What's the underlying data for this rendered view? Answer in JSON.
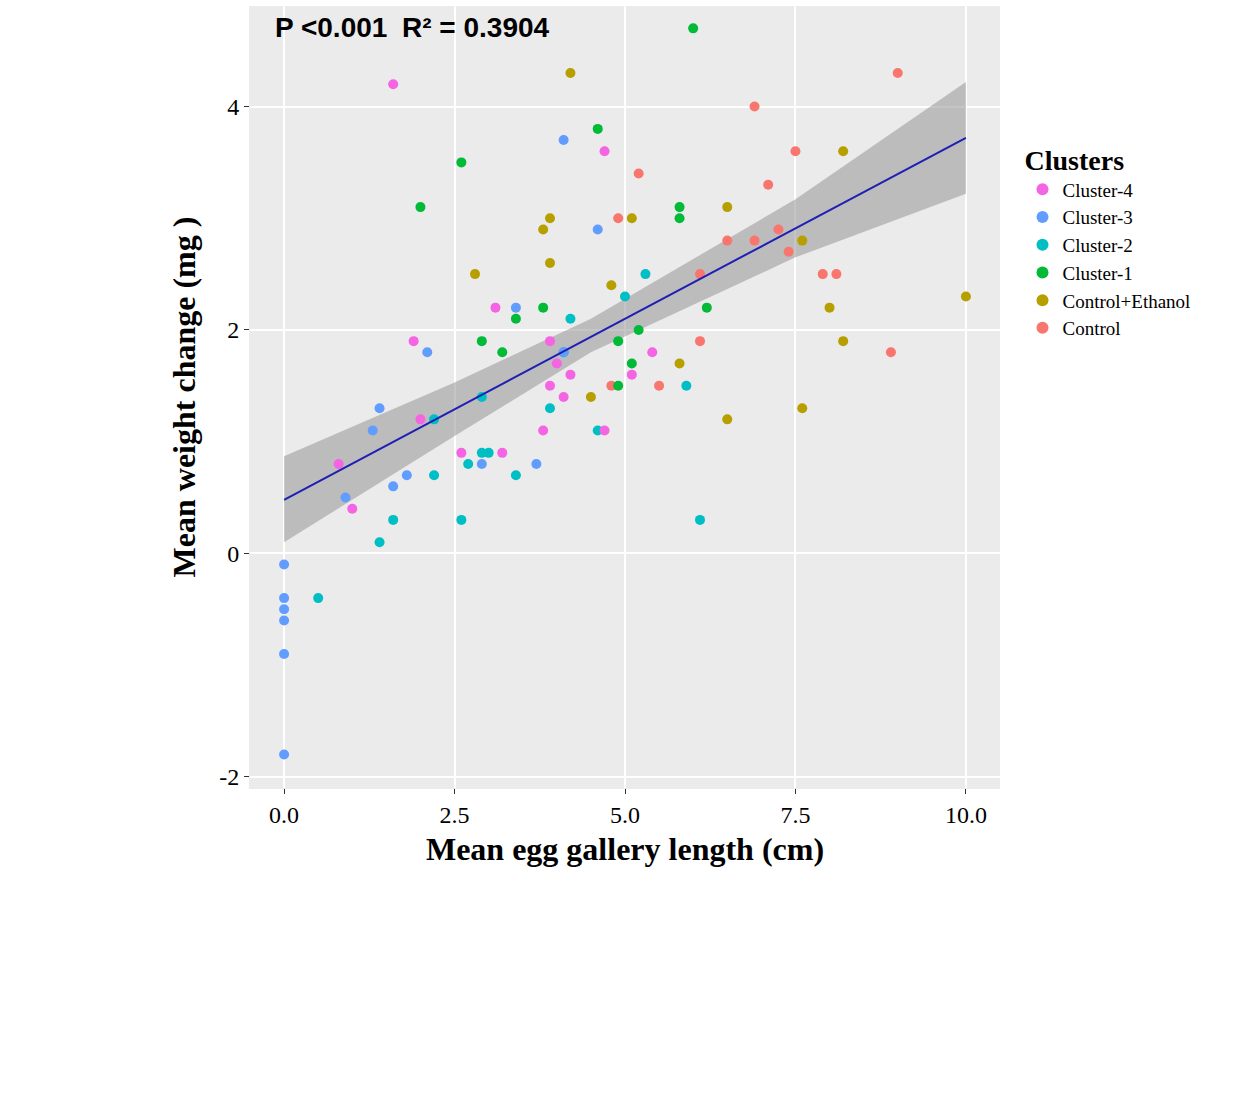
{
  "chart_data": {
    "type": "scatter",
    "x_label": "Mean egg gallery length (cm)",
    "y_label": "Mean weight change (mg )",
    "annotations": [
      "P <0.001",
      "R² = 0.3904"
    ],
    "legend_title": "Clusters",
    "legend": "right",
    "grid": true,
    "marker": "circle",
    "xlim": [
      -0.5,
      10.5
    ],
    "xticks": [
      {
        "value": 0,
        "label": "0.0"
      },
      2.5,
      {
        "value": 5,
        "label": "5.0"
      },
      7.5,
      {
        "value": 10,
        "label": "10.0"
      }
    ],
    "ylim": [
      -2.1,
      4.9
    ],
    "yticks": [
      -2,
      0,
      2,
      4
    ],
    "series": [
      {
        "name": "Control",
        "color": "#F8766D",
        "x": [
          9.0,
          6.9,
          5.2,
          4.9,
          7.5,
          7.1,
          7.25,
          6.5,
          6.9,
          7.4,
          6.1,
          7.9,
          8.1,
          6.1,
          8.9,
          5.5,
          4.8
        ],
        "values": [
          4.3,
          4.0,
          3.4,
          3.0,
          3.6,
          3.3,
          2.9,
          2.8,
          2.8,
          2.7,
          2.5,
          2.5,
          2.5,
          1.9,
          1.8,
          1.5,
          1.5
        ]
      },
      {
        "name": "Control+Ethanol",
        "color": "#B79F00",
        "x": [
          4.2,
          8.2,
          6.5,
          5.1,
          3.9,
          3.8,
          2.8,
          3.9,
          7.6,
          10.0,
          8.0,
          4.8,
          8.2,
          5.8,
          4.5,
          7.6,
          6.5
        ],
        "values": [
          4.3,
          3.6,
          3.1,
          3.0,
          3.0,
          2.9,
          2.5,
          2.6,
          2.8,
          2.3,
          2.2,
          2.4,
          1.9,
          1.7,
          1.4,
          1.3,
          1.2
        ]
      },
      {
        "name": "Cluster-1",
        "color": "#00BA38",
        "x": [
          6.0,
          4.6,
          2.6,
          2.0,
          5.8,
          5.8,
          3.4,
          3.8,
          6.2,
          5.2,
          2.9,
          3.2,
          4.9,
          5.1,
          4.9
        ],
        "values": [
          4.7,
          3.8,
          3.5,
          3.1,
          3.1,
          3.0,
          2.1,
          2.2,
          2.2,
          2.0,
          1.9,
          1.8,
          1.9,
          1.7,
          1.5
        ]
      },
      {
        "name": "Cluster-2",
        "color": "#00BFC4",
        "x": [
          5.0,
          5.3,
          4.2,
          3.9,
          4.1,
          5.9,
          4.6,
          2.2,
          2.9,
          2.7,
          2.9,
          3.0,
          2.2,
          3.4,
          1.6,
          2.6,
          6.1,
          1.4,
          0.5
        ],
        "values": [
          2.3,
          2.5,
          2.1,
          1.3,
          1.8,
          1.5,
          1.1,
          1.2,
          1.4,
          0.8,
          0.9,
          0.9,
          0.7,
          0.7,
          0.3,
          0.3,
          0.3,
          0.1,
          -0.4
        ]
      },
      {
        "name": "Cluster-3",
        "color": "#619CFF",
        "x": [
          4.1,
          4.6,
          3.4,
          2.1,
          4.1,
          1.4,
          1.3,
          1.8,
          1.6,
          2.9,
          3.7,
          0.9,
          0,
          0,
          0,
          0,
          0,
          0
        ],
        "values": [
          3.7,
          2.9,
          2.2,
          1.8,
          1.8,
          1.3,
          1.1,
          0.7,
          0.6,
          0.8,
          0.8,
          0.5,
          -0.1,
          -0.4,
          -0.5,
          -0.6,
          -0.9,
          -1.8
        ]
      },
      {
        "name": "Cluster-4",
        "color": "#F564E3",
        "x": [
          1.6,
          4.7,
          3.1,
          1.9,
          3.9,
          5.4,
          4.0,
          4.2,
          5.1,
          4.1,
          2.0,
          3.8,
          4.7,
          2.6,
          3.2,
          0.8,
          1.0,
          3.9
        ],
        "values": [
          4.2,
          3.6,
          2.2,
          1.9,
          1.9,
          1.8,
          1.7,
          1.6,
          1.6,
          1.4,
          1.2,
          1.1,
          1.1,
          0.9,
          0.9,
          0.8,
          0.4,
          1.5
        ]
      }
    ],
    "regression": {
      "color": "#1F1FB4",
      "x": [
        0,
        2.5,
        4.5,
        7.5,
        10
      ],
      "values": [
        0.48,
        1.29,
        1.94,
        2.91,
        3.72
      ],
      "lower": [
        0.1,
        1.05,
        1.8,
        2.65,
        3.22
      ],
      "upper": [
        0.87,
        1.53,
        2.1,
        3.17,
        4.22
      ]
    }
  }
}
